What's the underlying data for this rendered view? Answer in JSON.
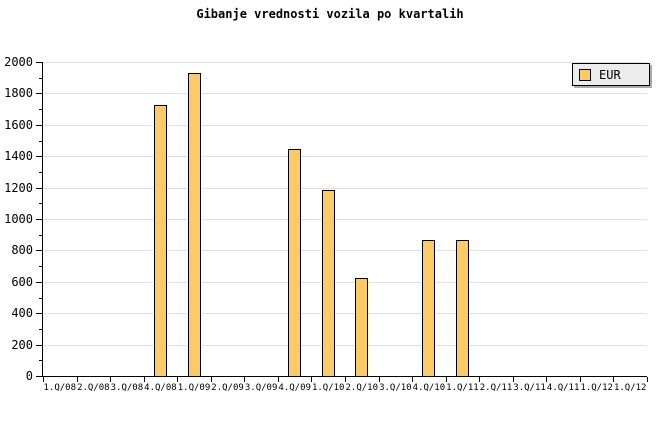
{
  "legend": {
    "label": "EUR",
    "position": "top-right"
  },
  "colors": {
    "background": "#FFFFFF",
    "text": "#000000",
    "axis": "#000000",
    "gridline": "#E0E0E0",
    "bar_fill": "#FDCB65",
    "bar_border": "#000000",
    "legend_bg": "#ECECEC",
    "legend_shadow": "#AAAAAA"
  },
  "chart_data": {
    "type": "bar",
    "title": "Gibanje vrednosti vozila po kvartalih",
    "categories": [
      "1.Q/08",
      "2.Q/08",
      "3.Q/08",
      "4.Q/08",
      "1.Q/09",
      "2.Q/09",
      "3.Q/09",
      "4.Q/09",
      "1.Q/10",
      "2.Q/10",
      "3.Q/10",
      "4.Q/10",
      "1.Q/11",
      "2.Q/11",
      "3.Q/11",
      "4.Q/11",
      "1.Q/12",
      "1.Q/12"
    ],
    "series": [
      {
        "name": "EUR",
        "values": [
          null,
          null,
          null,
          1725,
          1930,
          null,
          null,
          1445,
          1185,
          625,
          null,
          865,
          865,
          null,
          null,
          null,
          null,
          null
        ]
      }
    ],
    "xlabel": "",
    "ylabel": "",
    "ylim": [
      0,
      2000
    ],
    "ytick_step": 200,
    "yminor_step": 100,
    "grid": "horizontal-only",
    "legend_position": "top-right"
  }
}
